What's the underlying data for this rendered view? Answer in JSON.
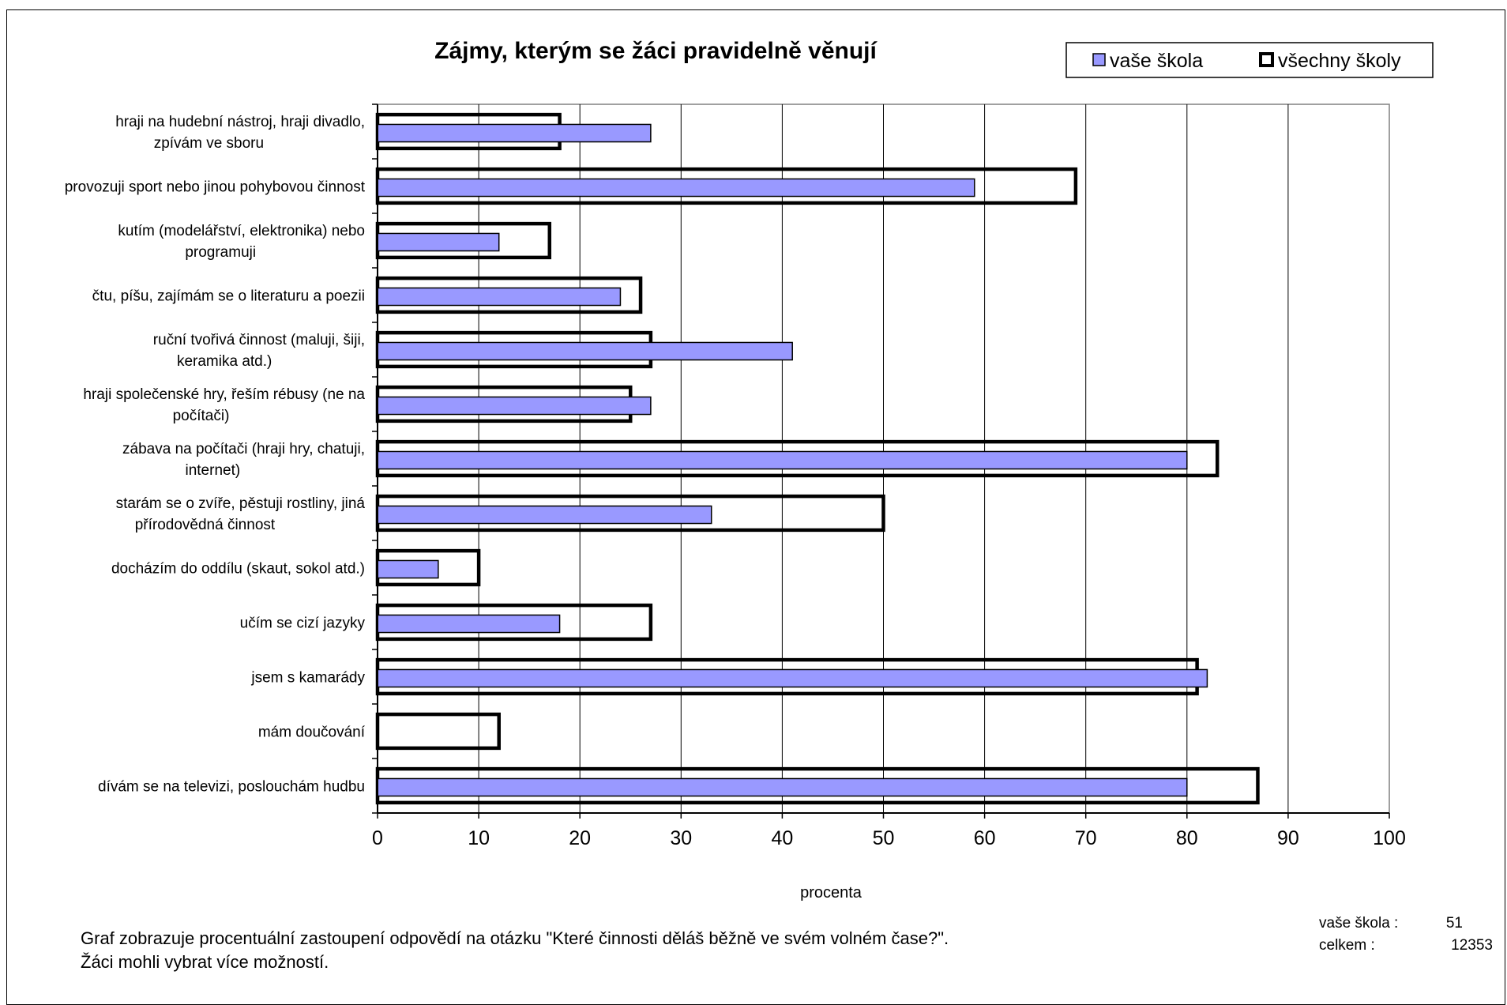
{
  "chart_data": {
    "type": "bar",
    "orientation": "horizontal",
    "title": "Zájmy, kterým se žáci pravidelně věnují",
    "xlabel": "procenta",
    "xlim": [
      0,
      100
    ],
    "ticks": [
      "0",
      "10",
      "20",
      "30",
      "40",
      "50",
      "60",
      "70",
      "80",
      "90",
      "100"
    ],
    "grid": true,
    "legend_position": "top-right",
    "categories": [
      "hraji na hudební nástroj, hraji divadlo, zpívám ve sboru",
      "provozuji sport nebo jinou pohybovou činnost",
      "kutím (modelářství, elektronika) nebo programuji",
      "čtu, píšu, zajímám se o literaturu a poezii",
      "ruční tvořivá činnost (maluji, šiji, keramika atd.)",
      "hraji společenské hry, řeším rébusy (ne na počítači)",
      "zábava na počítači (hraji hry, chatuji, internet)",
      "starám se o zvíře, pěstuji rostliny, jiná přírodovědná činnost",
      "docházím do oddílu (skaut, sokol atd.)",
      "učím se cizí jazyky",
      "jsem s kamarády",
      "mám doučování",
      "dívám se na televizi, poslouchám hudbu"
    ],
    "series": [
      {
        "name": "vaše škola",
        "color": "#9999ff",
        "values": [
          27,
          59,
          12,
          24,
          41,
          27,
          80,
          33,
          6,
          18,
          82,
          0,
          80
        ]
      },
      {
        "name": "všechny školy",
        "color": "#000000",
        "values": [
          18,
          69,
          17,
          26,
          27,
          25,
          83,
          50,
          10,
          27,
          81,
          12,
          87
        ]
      }
    ]
  },
  "note": {
    "line1": "Graf zobrazuje procentuální zastoupení odpovědí na otázku \"Které činnosti děláš běžně ve svém volném čase?\".",
    "line2": "Žáci mohli vybrat více možností."
  },
  "counts": {
    "school_label": "vaše škola :",
    "school_value": "51",
    "total_label": "celkem :",
    "total_value": "12353"
  }
}
